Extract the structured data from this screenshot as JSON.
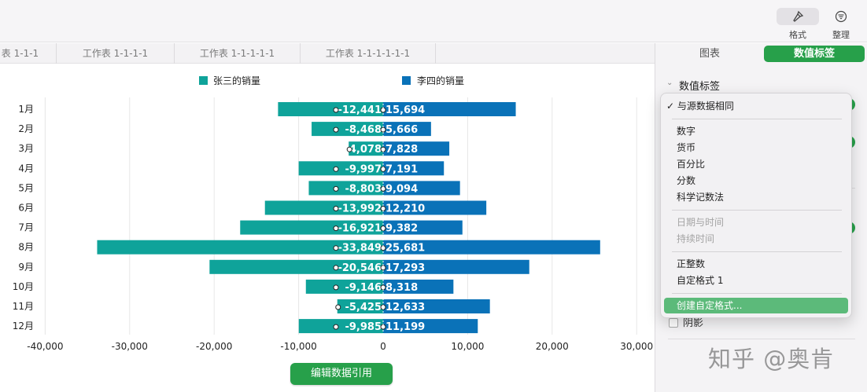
{
  "toolbar": {
    "format_label": "格式",
    "organize_label": "整理"
  },
  "sheet_tabs": [
    "表 1-1-1",
    "工作表 1-1-1-1",
    "工作表 1-1-1-1-1",
    "工作表 1-1-1-1-1-1"
  ],
  "panel": {
    "tab_chart": "图表",
    "tab_labels": "数值标签",
    "section_title": "数值标签",
    "shadow_label": "阴影"
  },
  "menu": {
    "checked_item": "与源数据相同",
    "group1": [
      "数字",
      "货币",
      "百分比",
      "分数",
      "科学记数法"
    ],
    "group2_disabled": [
      "日期与时间",
      "持续时间"
    ],
    "group3": [
      "正整数",
      "自定格式 1"
    ],
    "create_custom": "创建自定格式..."
  },
  "edit_data_button": "编辑数据引用",
  "watermark": "知乎 @奥肯",
  "colors": {
    "series1": "#0fa39a",
    "series2": "#0a72b8",
    "accent": "#27a04a"
  },
  "chart_data": {
    "type": "bar",
    "orientation": "horizontal",
    "categories": [
      "1月",
      "2月",
      "3月",
      "4月",
      "5月",
      "6月",
      "7月",
      "8月",
      "9月",
      "10月",
      "11月",
      "12月"
    ],
    "series": [
      {
        "name": "张三的销量",
        "values": [
          -12441,
          -8468,
          -4078,
          -9997,
          -8803,
          -13992,
          -16921,
          -33849,
          -20546,
          -9146,
          -5425,
          -9985
        ],
        "labels": [
          "-12,441",
          "-8,468",
          "-4,078",
          "-9,997",
          "-8,803",
          "-13,992",
          "-16,921",
          "-33,849",
          "-20,546",
          "-9,146",
          "-5,425",
          "-9,985"
        ]
      },
      {
        "name": "李四的销量",
        "values": [
          15694,
          5666,
          7828,
          7191,
          9094,
          12210,
          9382,
          25681,
          17293,
          8318,
          12633,
          11199
        ],
        "labels": [
          "15,694",
          "5,666",
          "7,828",
          "7,191",
          "9,094",
          "12,210",
          "9,382",
          "25,681",
          "17,293",
          "8,318",
          "12,633",
          "11,199"
        ]
      }
    ],
    "x_ticks": [
      "-40,000",
      "-30,000",
      "-20,000",
      "-10,000",
      "0",
      "10,000",
      "20,000",
      "30,000"
    ],
    "x_tick_values": [
      -40000,
      -30000,
      -20000,
      -10000,
      0,
      10000,
      20000,
      30000
    ],
    "xlim": [
      -40000,
      30000
    ],
    "legend_position": "top",
    "grid": true
  }
}
